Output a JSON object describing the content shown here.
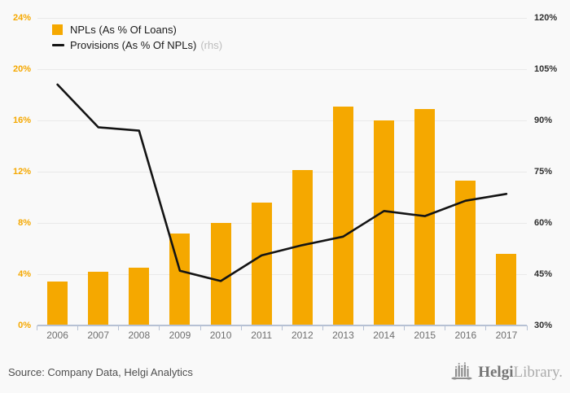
{
  "legend": {
    "items": [
      {
        "label": "NPLs (As % Of Loans)",
        "marker": "square",
        "color": "#f5a800"
      },
      {
        "label": "Provisions (As % Of NPLs)",
        "suffix": "(rhs)",
        "marker": "line",
        "color": "#141414"
      }
    ]
  },
  "footer": {
    "source": "Source: Company Data, Helgi Analytics",
    "logo": {
      "bold": "Helgi",
      "light": "Library."
    }
  },
  "colors": {
    "bar": "#f5a800",
    "line": "#141414",
    "grid": "#e9e9e9",
    "axis": "#b6c1d4",
    "left_labels": "#f5a800",
    "right_labels": "#2f2f2f",
    "year_labels": "#6e6e6e",
    "background": "#f9f9f9"
  },
  "chart_data": {
    "type": "bar",
    "categories": [
      "2006",
      "2007",
      "2008",
      "2009",
      "2010",
      "2011",
      "2012",
      "2013",
      "2014",
      "2015",
      "2016",
      "2017"
    ],
    "series": [
      {
        "name": "NPLs (As % Of Loans)",
        "type": "bar",
        "axis": "left",
        "color": "#f5a800",
        "values": [
          3.4,
          4.2,
          4.5,
          7.2,
          8.0,
          9.6,
          12.1,
          17.1,
          16.0,
          16.9,
          11.3,
          5.6
        ]
      },
      {
        "name": "Provisions (As % Of NPLs)",
        "type": "line",
        "axis": "right",
        "color": "#141414",
        "values": [
          100.5,
          88,
          87,
          46,
          43,
          50.5,
          53.5,
          56,
          63.5,
          62,
          66.5,
          68.5
        ]
      }
    ],
    "left_axis": {
      "min": 0,
      "max": 24,
      "ticks": [
        "0%",
        "4%",
        "8%",
        "12%",
        "16%",
        "20%",
        "24%"
      ]
    },
    "right_axis": {
      "min": 30,
      "max": 120,
      "ticks": [
        "30%",
        "45%",
        "60%",
        "75%",
        "90%",
        "105%",
        "120%"
      ]
    },
    "grid": true,
    "legend_position": "top-left"
  }
}
